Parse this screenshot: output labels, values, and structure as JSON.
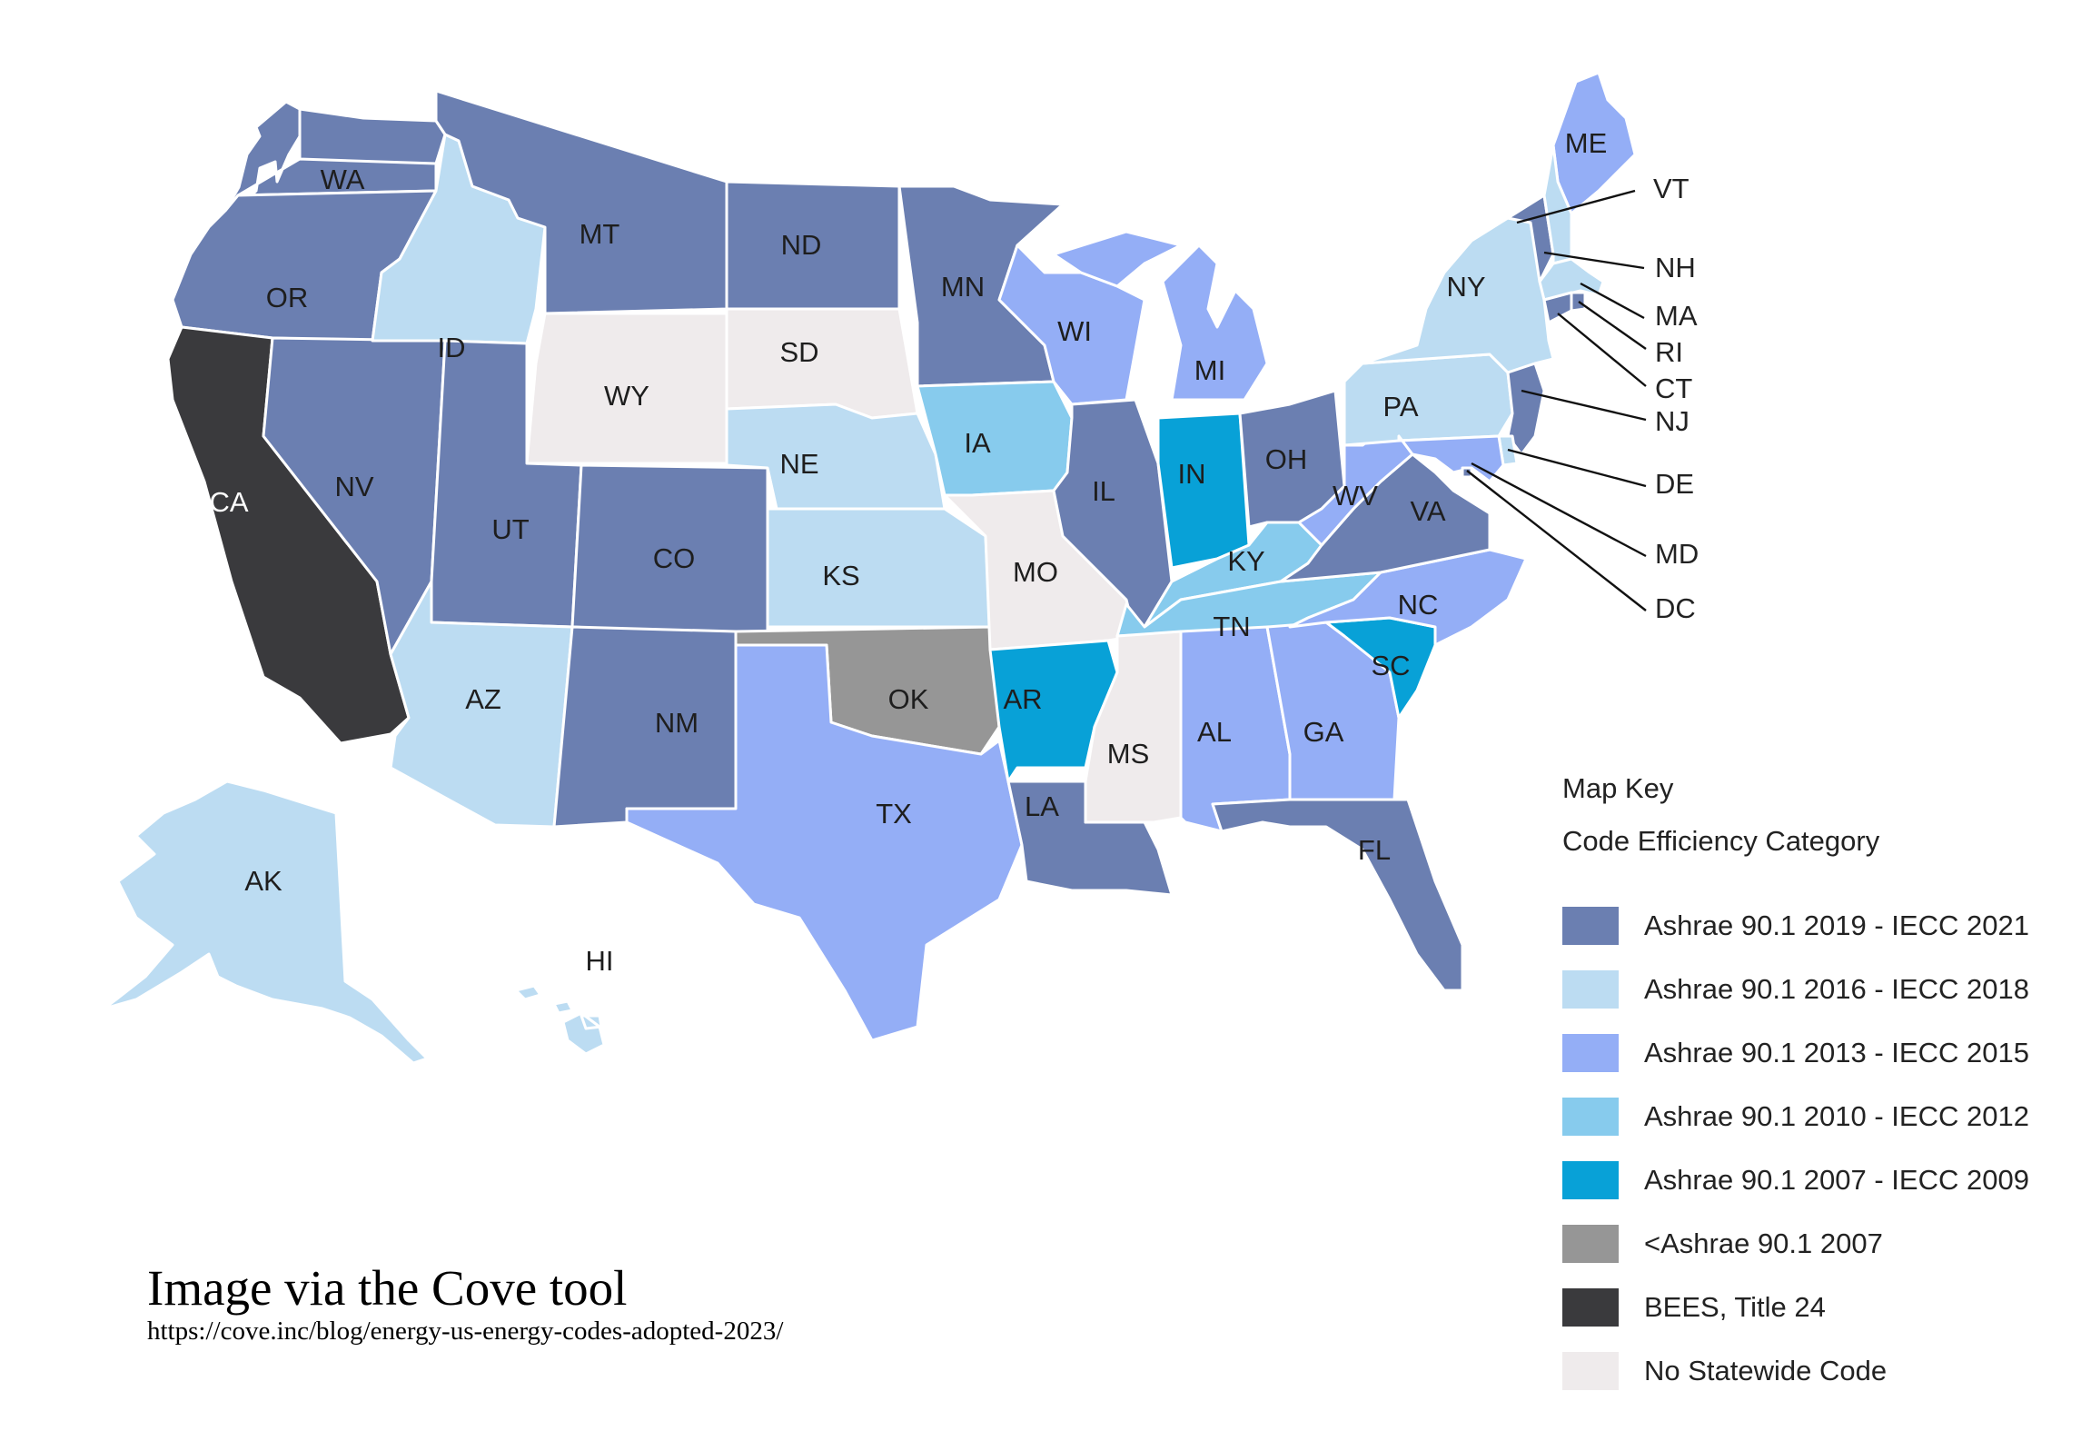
{
  "colors": {
    "c2019": "#6b7fb1",
    "c2016": "#bcdcf2",
    "c2013": "#94aef6",
    "c2010": "#87cbed",
    "c2007": "#08a1d7",
    "cold": "#969696",
    "cbees": "#3a3a3d",
    "cnone": "#efebec"
  },
  "states": {
    "WA": {
      "label": "WA",
      "cat": "c2019"
    },
    "OR": {
      "label": "OR",
      "cat": "c2019"
    },
    "CA": {
      "label": "CA",
      "cat": "cbees"
    },
    "NV": {
      "label": "NV",
      "cat": "c2019"
    },
    "ID": {
      "label": "ID",
      "cat": "c2016"
    },
    "MT": {
      "label": "MT",
      "cat": "c2019"
    },
    "WY": {
      "label": "WY",
      "cat": "cnone"
    },
    "UT": {
      "label": "UT",
      "cat": "c2019"
    },
    "AZ": {
      "label": "AZ",
      "cat": "c2016"
    },
    "CO": {
      "label": "CO",
      "cat": "c2019"
    },
    "NM": {
      "label": "NM",
      "cat": "c2019"
    },
    "ND": {
      "label": "ND",
      "cat": "c2019"
    },
    "SD": {
      "label": "SD",
      "cat": "cnone"
    },
    "NE": {
      "label": "NE",
      "cat": "c2016"
    },
    "KS": {
      "label": "KS",
      "cat": "c2016"
    },
    "OK": {
      "label": "OK",
      "cat": "cold"
    },
    "TX": {
      "label": "TX",
      "cat": "c2013"
    },
    "MN": {
      "label": "MN",
      "cat": "c2019"
    },
    "IA": {
      "label": "IA",
      "cat": "c2010"
    },
    "MO": {
      "label": "MO",
      "cat": "cnone"
    },
    "AR": {
      "label": "AR",
      "cat": "c2007"
    },
    "LA": {
      "label": "LA",
      "cat": "c2019"
    },
    "WI": {
      "label": "WI",
      "cat": "c2013"
    },
    "IL": {
      "label": "IL",
      "cat": "c2019"
    },
    "MI": {
      "label": "MI",
      "cat": "c2013"
    },
    "IN": {
      "label": "IN",
      "cat": "c2007"
    },
    "OH": {
      "label": "OH",
      "cat": "c2019"
    },
    "KY": {
      "label": "KY",
      "cat": "c2010"
    },
    "TN": {
      "label": "TN",
      "cat": "c2010"
    },
    "MS": {
      "label": "MS",
      "cat": "cnone"
    },
    "AL": {
      "label": "AL",
      "cat": "c2013"
    },
    "GA": {
      "label": "GA",
      "cat": "c2013"
    },
    "FL": {
      "label": "FL",
      "cat": "c2019"
    },
    "SC": {
      "label": "SC",
      "cat": "c2007"
    },
    "NC": {
      "label": "NC",
      "cat": "c2013"
    },
    "VA": {
      "label": "VA",
      "cat": "c2019"
    },
    "WV": {
      "label": "WV",
      "cat": "c2013"
    },
    "PA": {
      "label": "PA",
      "cat": "c2016"
    },
    "NY": {
      "label": "NY",
      "cat": "c2016"
    },
    "ME": {
      "label": "ME",
      "cat": "c2013"
    },
    "VT": {
      "label": "VT",
      "cat": "c2019"
    },
    "NH": {
      "label": "NH",
      "cat": "c2016"
    },
    "MA": {
      "label": "MA",
      "cat": "c2016"
    },
    "RI": {
      "label": "RI",
      "cat": "c2019"
    },
    "CT": {
      "label": "CT",
      "cat": "c2019"
    },
    "NJ": {
      "label": "NJ",
      "cat": "c2019"
    },
    "DE": {
      "label": "DE",
      "cat": "c2016"
    },
    "MD": {
      "label": "MD",
      "cat": "c2013"
    },
    "DC": {
      "label": "DC",
      "cat": "c2019"
    },
    "AK": {
      "label": "AK",
      "cat": "c2016"
    },
    "HI": {
      "label": "HI",
      "cat": "c2016"
    }
  },
  "legend": {
    "title": "Map Key",
    "subtitle": "Code Efficiency Category",
    "items": [
      {
        "label": "Ashrae 90.1 2019 - IECC 2021",
        "cat": "c2019"
      },
      {
        "label": "Ashrae 90.1 2016 - IECC 2018",
        "cat": "c2016"
      },
      {
        "label": "Ashrae 90.1 2013 - IECC 2015",
        "cat": "c2013"
      },
      {
        "label": "Ashrae 90.1 2010 - IECC 2012",
        "cat": "c2010"
      },
      {
        "label": "Ashrae 90.1 2007 - IECC 2009",
        "cat": "c2007"
      },
      {
        "label": "<Ashrae 90.1 2007",
        "cat": "cold"
      },
      {
        "label": "BEES, Title 24",
        "cat": "cbees"
      },
      {
        "label": "No Statewide Code",
        "cat": "cnone"
      }
    ]
  },
  "credit": {
    "title": "Image via the Cove tool",
    "url": "https://cove.inc/blog/energy-us-energy-codes-adopted-2023/"
  }
}
